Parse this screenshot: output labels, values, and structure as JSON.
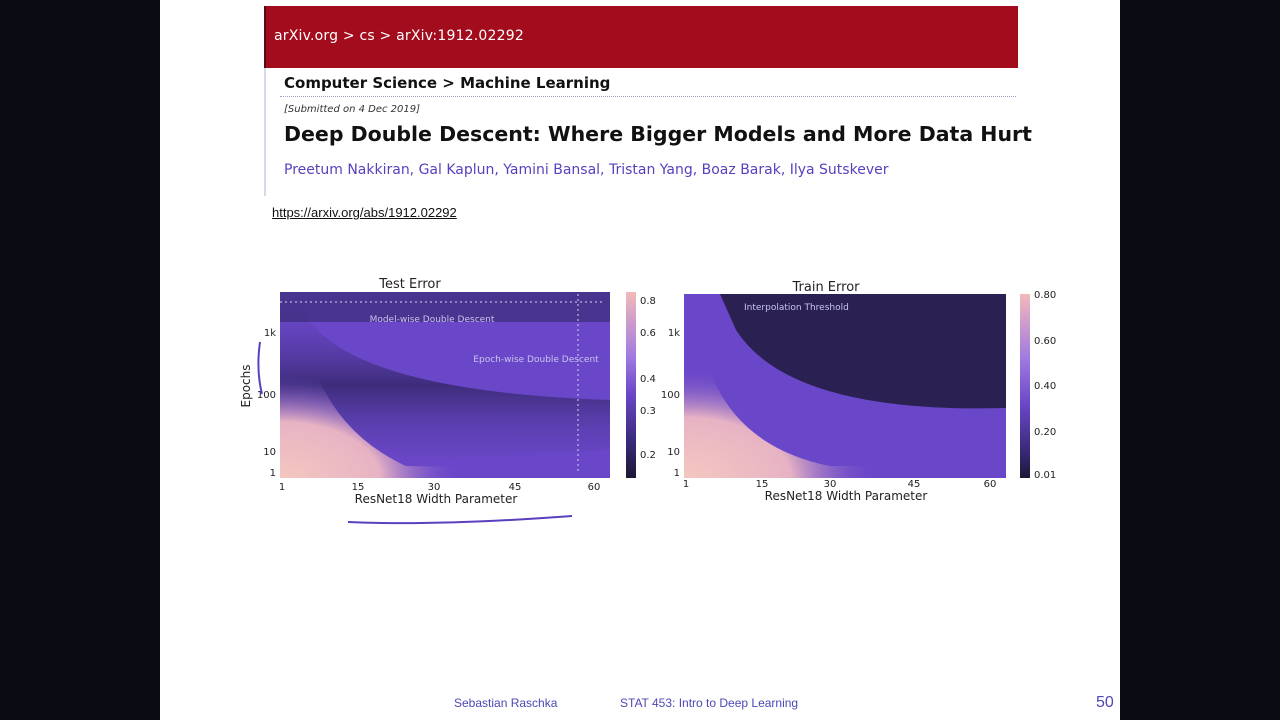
{
  "arxiv": {
    "breadcrumb": "arXiv.org > cs > arXiv:1912.02292",
    "subject": "Computer Science > Machine Learning",
    "submitted": "[Submitted on 4 Dec 2019]",
    "title": "Deep Double Descent: Where Bigger Models and More Data Hurt",
    "authors": "Preetum Nakkiran, Gal Kaplun, Yamini Bansal, Tristan Yang, Boaz Barak, Ilya Sutskever",
    "header_color": "#a30c1d",
    "author_color": "#5a3fbf"
  },
  "url": "https://arxiv.org/abs/1912.02292",
  "chart_data": [
    {
      "type": "heatmap",
      "title": "Test Error",
      "xlabel": "ResNet18 Width Parameter",
      "ylabel": "Epochs",
      "x_ticks": [
        "1",
        "15",
        "30",
        "45",
        "60"
      ],
      "y_ticks": [
        "1",
        "10",
        "100",
        "1k"
      ],
      "colorbar_ticks": [
        "0.8",
        "0.6",
        "0.4",
        "0.3",
        "0.2"
      ],
      "annotations": [
        "Model-wise Double Descent",
        "Epoch-wise Double Descent"
      ]
    },
    {
      "type": "heatmap",
      "title": "Train Error",
      "xlabel": "ResNet18 Width Parameter",
      "ylabel": "",
      "x_ticks": [
        "1",
        "15",
        "30",
        "45",
        "60"
      ],
      "y_ticks": [
        "1",
        "10",
        "100",
        "1k"
      ],
      "colorbar_ticks": [
        "0.80",
        "0.60",
        "0.40",
        "0.20",
        "0.01"
      ],
      "annotations": [
        "Interpolation Threshold"
      ]
    }
  ],
  "footer": {
    "author": "Sebastian Raschka",
    "course": "STAT 453: Intro to Deep Learning",
    "slide_number": "50"
  }
}
